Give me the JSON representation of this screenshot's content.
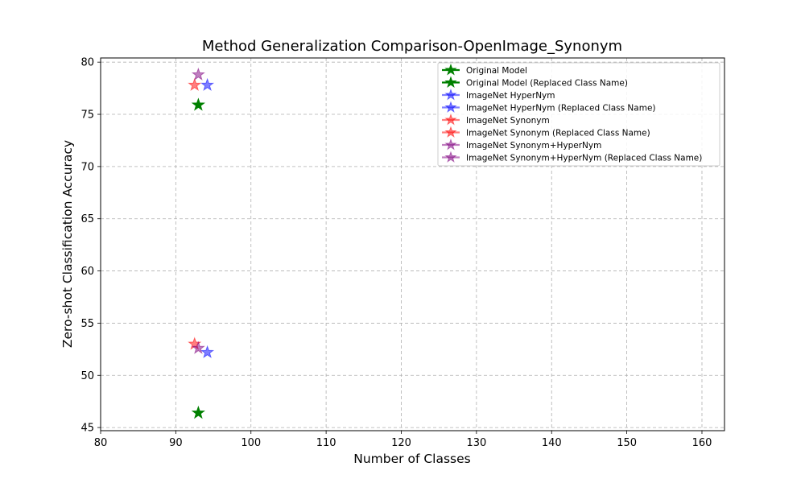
{
  "chart_data": {
    "type": "scatter",
    "title": "Method Generalization Comparison-OpenImage_Synonym",
    "xlabel": "Number of Classes",
    "ylabel": "Zero-shot Classification Accuracy",
    "xlim": [
      80,
      163
    ],
    "ylim": [
      44.7,
      80.4
    ],
    "xticks": [
      80,
      90,
      100,
      110,
      120,
      130,
      140,
      150,
      160
    ],
    "yticks": [
      45,
      50,
      55,
      60,
      65,
      70,
      75,
      80
    ],
    "grid": true,
    "legend_position": "top-right",
    "marker": "star",
    "series": [
      {
        "name": "Original Model",
        "color": "#008000",
        "alpha": 1.0,
        "points": [
          {
            "x": 93,
            "y": 75.9
          }
        ]
      },
      {
        "name": "Original Model (Replaced Class Name)",
        "color": "#008000",
        "alpha": 1.0,
        "points": [
          {
            "x": 93,
            "y": 46.4
          }
        ]
      },
      {
        "name": "ImageNet HyperNym",
        "color": "#0000ff",
        "alpha": 0.5,
        "points": [
          {
            "x": 94.2,
            "y": 77.8
          }
        ]
      },
      {
        "name": "ImageNet HyperNym (Replaced Class Name)",
        "color": "#0000ff",
        "alpha": 0.5,
        "points": [
          {
            "x": 94.2,
            "y": 52.2
          }
        ]
      },
      {
        "name": "ImageNet Synonym",
        "color": "#ff0000",
        "alpha": 0.5,
        "points": [
          {
            "x": 92.5,
            "y": 77.8
          }
        ]
      },
      {
        "name": "ImageNet Synonym (Replaced Class Name)",
        "color": "#ff0000",
        "alpha": 0.5,
        "points": [
          {
            "x": 92.5,
            "y": 53.0
          }
        ]
      },
      {
        "name": "ImageNet Synonym+HyperNym",
        "color": "#800080",
        "alpha": 0.5,
        "points": [
          {
            "x": 93,
            "y": 78.8
          }
        ]
      },
      {
        "name": "ImageNet Synonym+HyperNym (Replaced Class Name)",
        "color": "#800080",
        "alpha": 0.5,
        "points": [
          {
            "x": 93,
            "y": 52.6
          }
        ]
      }
    ]
  }
}
